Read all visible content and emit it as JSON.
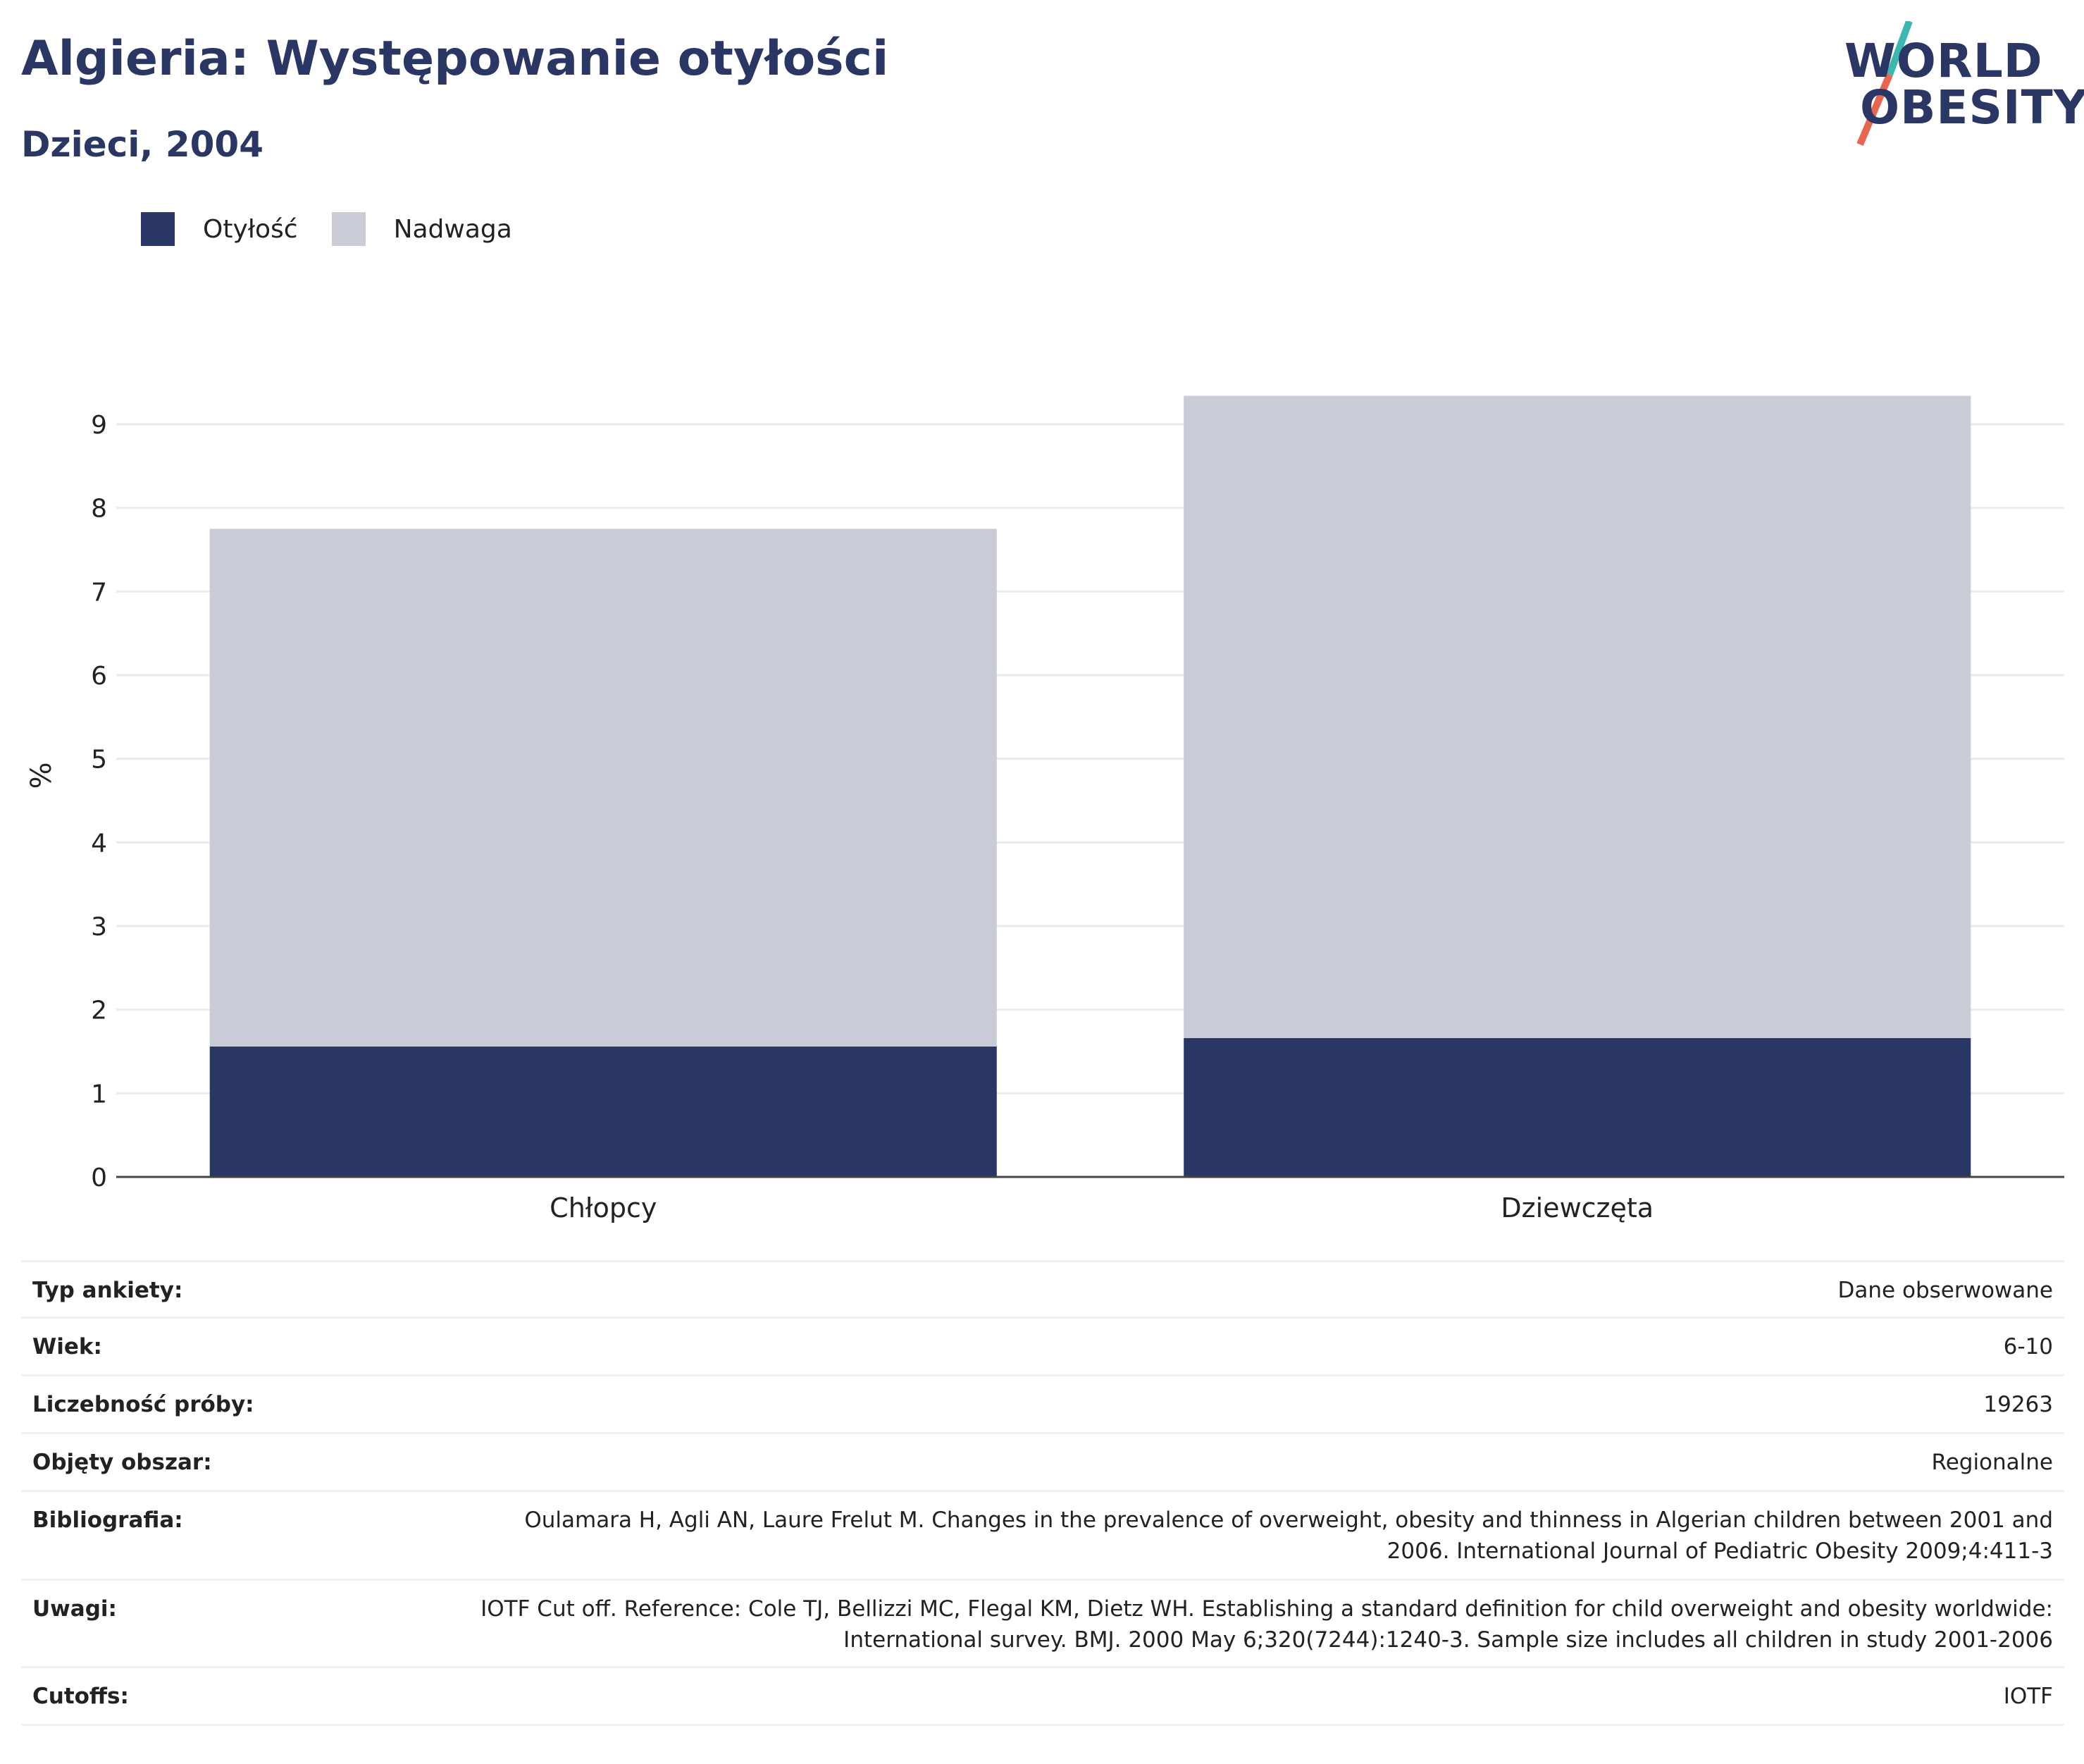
{
  "header": {
    "title": "Algieria: Występowanie otyłości",
    "subtitle": "Dzieci, 2004"
  },
  "logo": {
    "line1": "WORLD",
    "line2": "OBESITY",
    "accent_colors": [
      "#3bb7b0",
      "#e8654f"
    ]
  },
  "colors": {
    "obesity": "#2a3663",
    "overweight": "#c9ccd7",
    "text": "#2a3663",
    "grid": "#e9ebf0"
  },
  "legend": [
    {
      "label": "Otyłość",
      "color": "#2a3663"
    },
    {
      "label": "Nadwaga",
      "color": "#c9ccd7"
    }
  ],
  "chart_data": {
    "type": "bar",
    "stacked": true,
    "categories": [
      "Chłopcy",
      "Dziewczęta"
    ],
    "series": [
      {
        "name": "Otyłość",
        "values": [
          1.56,
          1.66
        ]
      },
      {
        "name": "Nadwaga",
        "values": [
          6.19,
          7.68
        ]
      }
    ],
    "ylabel": "%",
    "ylim": [
      0,
      9.6
    ],
    "yticks": [
      0,
      1,
      2,
      3,
      4,
      5,
      6,
      7,
      8,
      9
    ],
    "grid": true,
    "legend_position": "top-left"
  },
  "info": [
    {
      "key": "Typ ankiety:",
      "value": "Dane obserwowane"
    },
    {
      "key": "Wiek:",
      "value": "6-10"
    },
    {
      "key": "Liczebność próby:",
      "value": "19263"
    },
    {
      "key": "Objęty obszar:",
      "value": "Regionalne"
    },
    {
      "key": "Bibliografia:",
      "value": "Oulamara H, Agli AN, Laure Frelut M. Changes in the prevalence of overweight, obesity and thinness in Algerian children between 2001 and 2006. International Journal of Pediatric Obesity 2009;4:411-3"
    },
    {
      "key": "Uwagi:",
      "value": "IOTF Cut off. Reference: Cole TJ, Bellizzi MC, Flegal KM, Dietz WH. Establishing a standard definition for child overweight and obesity worldwide: International survey. BMJ. 2000 May 6;320(7244):1240-3. Sample size includes all children in study 2001-2006"
    },
    {
      "key": "Cutoffs:",
      "value": "IOTF"
    }
  ]
}
